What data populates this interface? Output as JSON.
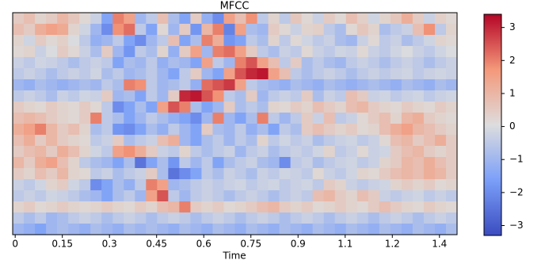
{
  "chart_data": {
    "type": "heatmap",
    "title": "MFCC",
    "x_label": "Time",
    "xlim": [
      -0.008,
      1.406
    ],
    "xticks": [
      0,
      0.15,
      0.3,
      0.45,
      0.6,
      0.75,
      0.9,
      {
        "value": 1.05,
        "label": "1.1"
      },
      1.2,
      {
        "value": 1.35,
        "label": "1.4"
      }
    ],
    "colormap": "coolwarm",
    "colorscale": [
      "#3b4cc0",
      "#7b9ff9",
      "#dddddd",
      "#f4987a",
      "#b40426"
    ],
    "zlim": [
      -3.3,
      3.4
    ],
    "zticks": [
      3,
      2,
      1,
      0,
      {
        "value": -1,
        "label": "−1"
      },
      {
        "value": -2,
        "label": "−2"
      },
      {
        "value": -3,
        "label": "−3"
      }
    ],
    "values": [
      [
        0.5,
        0.8,
        0.3,
        0.5,
        1.0,
        0.6,
        0.2,
        -0.3,
        -1.5,
        2.0,
        1.5,
        -1.0,
        -0.5,
        0.8,
        -0.8,
        -1.5,
        0.5,
        -1.2,
        -2.0,
        1.5,
        0.8,
        1.8,
        -0.5,
        0.3,
        -0.5,
        0.6,
        0.2,
        -0.3,
        0.5,
        0.2,
        0.8,
        0.4,
        -0.2,
        0.3,
        0.6,
        1.2,
        0.5,
        -0.3,
        0.4,
        0.2
      ],
      [
        0.8,
        0.5,
        1.2,
        1.5,
        1.3,
        0.3,
        -0.2,
        -1.0,
        -2.0,
        1.8,
        2.2,
        -0.5,
        -1.5,
        0.2,
        -1.0,
        0.5,
        -1.8,
        1.0,
        2.0,
        -2.2,
        1.5,
        -0.8,
        -1.0,
        0.5,
        0.2,
        -0.3,
        0.3,
        0.4,
        -0.5,
        -0.8,
        0.2,
        0.6,
        0.3,
        -0.8,
        -0.5,
        -0.3,
        0.8,
        1.8,
        -0.5,
        0.3
      ],
      [
        0.3,
        -0.2,
        0.5,
        0.2,
        0.4,
        0.0,
        -0.5,
        -1.2,
        -1.0,
        -0.5,
        -1.5,
        -2.0,
        -1.0,
        -0.5,
        0.8,
        -1.5,
        -0.8,
        2.0,
        1.2,
        -1.8,
        -1.5,
        -0.5,
        -0.8,
        0.3,
        -0.5,
        0.2,
        -0.2,
        -0.5,
        -0.3,
        -0.8,
        -1.0,
        -0.3,
        0.2,
        -0.5,
        -0.3,
        -0.8,
        -0.5,
        -0.2,
        0.3,
        0.2
      ],
      [
        0.2,
        0.3,
        -0.3,
        0.0,
        0.5,
        0.2,
        -0.3,
        -0.8,
        0.5,
        -1.0,
        -1.8,
        -0.5,
        -0.8,
        0.3,
        -1.2,
        0.5,
        1.5,
        -1.0,
        2.0,
        2.2,
        1.5,
        0.5,
        -0.5,
        -0.8,
        -0.3,
        -0.5,
        0.2,
        -0.3,
        -0.5,
        -0.2,
        -0.3,
        0.2,
        -0.3,
        -0.5,
        -0.2,
        0.0,
        -0.3,
        -0.5,
        -0.2,
        0.0
      ],
      [
        -0.3,
        -0.5,
        -0.2,
        -0.3,
        -0.5,
        -0.8,
        -0.5,
        -0.3,
        -0.5,
        -1.5,
        -0.8,
        -1.0,
        -0.5,
        -1.2,
        -0.8,
        -1.0,
        -1.5,
        1.5,
        -0.5,
        -1.0,
        2.0,
        2.5,
        1.5,
        0.8,
        -0.5,
        0.5,
        -0.8,
        -0.5,
        -0.8,
        -1.0,
        -0.5,
        -0.3,
        -0.5,
        -0.8,
        -0.5,
        -0.3,
        -0.5,
        -0.8,
        -0.5,
        -0.3
      ],
      [
        -0.5,
        -0.3,
        -0.5,
        -0.8,
        -0.5,
        -0.3,
        -0.5,
        -0.2,
        -0.8,
        -0.5,
        -1.0,
        -0.8,
        -0.5,
        -1.0,
        -1.5,
        -0.5,
        0.5,
        -1.0,
        -1.5,
        1.5,
        2.5,
        3.0,
        3.2,
        1.5,
        0.8,
        -0.5,
        -0.8,
        -0.5,
        -0.3,
        -0.5,
        -0.8,
        -0.5,
        -0.3,
        -0.5,
        -0.3,
        -0.2,
        -0.5,
        -0.3,
        -0.2,
        -0.3
      ],
      [
        -1.0,
        -1.2,
        -0.8,
        -1.0,
        -1.2,
        -1.0,
        -0.8,
        -1.0,
        -0.5,
        -0.8,
        2.0,
        1.8,
        -0.5,
        -1.0,
        -0.8,
        -0.5,
        -1.2,
        2.2,
        2.5,
        2.8,
        1.5,
        -0.5,
        -0.8,
        -1.0,
        -1.2,
        -0.8,
        -1.0,
        -1.2,
        -0.8,
        -1.0,
        -1.2,
        -1.0,
        -0.8,
        -1.0,
        -1.2,
        -0.8,
        -1.0,
        -1.2,
        -0.8,
        -1.0
      ],
      [
        -0.5,
        -0.3,
        -0.5,
        -0.8,
        -0.3,
        -0.5,
        -0.2,
        -0.3,
        0.5,
        -1.0,
        -0.8,
        -1.5,
        -0.5,
        -1.0,
        0.5,
        3.0,
        3.2,
        2.5,
        1.8,
        -0.5,
        -0.8,
        0.5,
        -1.0,
        -0.5,
        -0.3,
        -0.5,
        0.5,
        -0.8,
        -0.3,
        -0.5,
        0.8,
        0.5,
        -0.3,
        -0.2,
        -0.5,
        -0.3,
        -0.2,
        -0.5,
        -0.3,
        -0.2
      ],
      [
        0.5,
        0.3,
        0.2,
        0.5,
        0.3,
        0.2,
        0.5,
        0.2,
        -0.5,
        -2.0,
        -1.5,
        -0.8,
        -1.5,
        1.5,
        2.5,
        2.0,
        -0.8,
        -1.5,
        -1.0,
        0.5,
        -0.8,
        -0.5,
        -0.8,
        0.3,
        0.2,
        0.5,
        0.3,
        0.8,
        0.5,
        0.3,
        0.8,
        1.0,
        0.5,
        0.3,
        0.2,
        0.5,
        0.3,
        0.2,
        0.5,
        0.3
      ],
      [
        0.8,
        1.0,
        0.8,
        0.5,
        0.3,
        0.2,
        0.5,
        2.0,
        -0.5,
        -0.8,
        -1.5,
        -1.0,
        -0.5,
        -0.8,
        -1.2,
        -1.5,
        -2.0,
        -1.0,
        2.0,
        -1.0,
        -1.5,
        -0.8,
        2.0,
        -0.5,
        -1.0,
        -0.5,
        0.5,
        -0.3,
        0.8,
        -0.5,
        -0.3,
        0.2,
        0.5,
        0.8,
        0.3,
        1.0,
        1.2,
        0.5,
        0.3,
        0.2
      ],
      [
        1.2,
        1.5,
        2.0,
        1.0,
        0.5,
        0.8,
        0.3,
        -0.8,
        -0.5,
        -1.8,
        -2.0,
        -1.5,
        -0.8,
        -1.2,
        -0.5,
        -1.0,
        -1.5,
        0.5,
        -0.8,
        -1.0,
        -0.5,
        -1.2,
        -0.8,
        -1.5,
        -0.5,
        -0.8,
        0.5,
        0.8,
        0.5,
        0.3,
        0.5,
        0.2,
        0.3,
        0.8,
        1.2,
        1.5,
        1.0,
        0.8,
        0.5,
        0.3
      ],
      [
        0.8,
        1.2,
        0.5,
        1.0,
        0.5,
        0.3,
        0.2,
        -0.5,
        -0.3,
        0.5,
        -0.8,
        -0.5,
        -0.3,
        0.8,
        1.2,
        -1.0,
        -1.5,
        -0.8,
        -0.5,
        -1.0,
        -0.5,
        -0.8,
        0.3,
        -0.5,
        -0.2,
        -0.5,
        -0.3,
        -0.8,
        -0.5,
        -0.3,
        -0.2,
        -0.5,
        -0.3,
        0.2,
        0.8,
        1.0,
        0.5,
        0.8,
        1.2,
        0.5
      ],
      [
        0.5,
        0.8,
        1.0,
        0.5,
        1.2,
        0.8,
        0.3,
        -0.2,
        -0.5,
        1.5,
        1.8,
        1.2,
        0.5,
        -0.3,
        -0.5,
        0.3,
        -0.5,
        -0.8,
        -0.5,
        -0.3,
        -1.0,
        -0.5,
        -0.3,
        -0.8,
        -0.5,
        -0.3,
        -0.5,
        -0.2,
        0.3,
        -0.5,
        -0.3,
        0.2,
        -0.3,
        -0.2,
        0.5,
        0.8,
        1.0,
        0.5,
        0.3,
        0.5
      ],
      [
        1.0,
        0.5,
        1.2,
        1.5,
        0.8,
        0.3,
        -0.5,
        -0.8,
        -1.0,
        -1.5,
        -0.8,
        -2.5,
        -1.5,
        -0.8,
        -1.8,
        -0.5,
        -1.0,
        -0.5,
        -1.5,
        -0.8,
        -0.5,
        -0.3,
        -0.8,
        -1.0,
        -2.0,
        -0.5,
        -0.3,
        -0.8,
        -0.5,
        -0.3,
        -0.2,
        -0.5,
        -0.3,
        0.3,
        0.5,
        1.0,
        0.8,
        1.2,
        0.8,
        0.5
      ],
      [
        0.5,
        0.3,
        0.8,
        0.5,
        1.0,
        0.3,
        0.2,
        -0.5,
        -0.3,
        -0.8,
        -0.5,
        -0.3,
        0.5,
        -0.8,
        -2.5,
        -2.0,
        -1.5,
        -0.5,
        -0.8,
        -0.3,
        -0.5,
        -0.8,
        -0.3,
        -0.5,
        -0.2,
        -0.3,
        -0.5,
        0.2,
        -0.3,
        -0.5,
        -0.2,
        0.3,
        0.2,
        0.5,
        0.8,
        1.0,
        0.8,
        1.2,
        1.0,
        0.5
      ],
      [
        -0.3,
        -0.5,
        -0.2,
        0.3,
        0.5,
        -0.2,
        -0.5,
        -2.0,
        -1.5,
        -0.8,
        -1.2,
        -0.5,
        2.0,
        1.5,
        -1.0,
        -0.8,
        -0.5,
        -0.3,
        -0.5,
        -0.3,
        -0.2,
        -0.5,
        -0.3,
        -0.2,
        -0.5,
        -0.3,
        -0.2,
        -0.5,
        0.5,
        0.3,
        -0.3,
        -0.5,
        -0.3,
        -0.2,
        0.3,
        0.5,
        0.3,
        0.5,
        0.2,
        0.3
      ],
      [
        -0.5,
        -0.3,
        -0.5,
        -0.2,
        -0.3,
        -0.5,
        -0.8,
        -1.0,
        -1.5,
        -0.8,
        -0.5,
        -1.0,
        1.5,
        2.5,
        -0.5,
        -1.0,
        -0.5,
        -0.3,
        -0.5,
        -0.8,
        -0.5,
        -0.3,
        -0.5,
        -0.8,
        -0.5,
        -0.3,
        -0.5,
        0.8,
        1.0,
        0.5,
        0.3,
        0.8,
        0.5,
        -0.3,
        -0.5,
        -0.3,
        -0.2,
        -0.5,
        -0.3,
        -0.5
      ],
      [
        0.3,
        0.5,
        0.2,
        0.3,
        0.5,
        0.3,
        0.2,
        0.3,
        0.5,
        0.3,
        0.2,
        0.5,
        0.3,
        0.8,
        1.0,
        2.0,
        0.5,
        0.3,
        0.5,
        0.2,
        0.3,
        0.5,
        0.8,
        1.0,
        0.5,
        0.3,
        0.5,
        0.2,
        0.3,
        0.5,
        0.3,
        0.2,
        0.5,
        0.8,
        0.5,
        0.3,
        0.2,
        0.5,
        0.3,
        0.2
      ],
      [
        -0.5,
        -0.8,
        -0.5,
        -1.0,
        -0.8,
        -0.5,
        -0.3,
        -0.5,
        -0.8,
        -0.5,
        -0.3,
        -0.5,
        -0.8,
        -0.5,
        -0.3,
        -0.5,
        -0.8,
        -0.5,
        -0.3,
        -0.5,
        -0.8,
        -0.5,
        -0.3,
        -0.5,
        -0.8,
        -0.5,
        -0.3,
        -0.5,
        -0.8,
        -0.5,
        -0.3,
        -0.5,
        -0.8,
        -0.5,
        -0.3,
        -0.5,
        -0.8,
        -0.5,
        -0.3,
        -0.5
      ],
      [
        -1.0,
        -1.2,
        -1.5,
        -1.0,
        -0.8,
        -1.0,
        -1.2,
        -0.8,
        -1.0,
        -1.2,
        -0.8,
        -1.0,
        -0.8,
        -1.0,
        -1.2,
        -0.8,
        -1.0,
        -1.2,
        -0.8,
        -1.0,
        -1.2,
        -0.8,
        -1.0,
        -1.2,
        -0.8,
        -1.0,
        -1.2,
        -0.8,
        -1.0,
        -1.2,
        -0.8,
        -1.0,
        -1.2,
        -0.8,
        -1.0,
        -1.2,
        -0.8,
        -1.0,
        -1.2,
        -0.8
      ]
    ]
  }
}
